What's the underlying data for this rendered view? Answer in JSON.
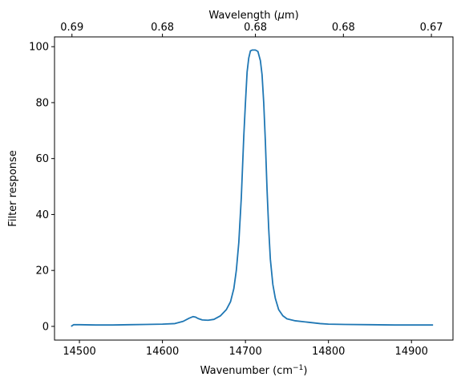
{
  "chart_data": {
    "type": "line",
    "xlabel": "Wavenumber (cm",
    "xlabel_sup": "−1",
    "xlabel_close": ")",
    "ylabel": "Filter response",
    "top_xlabel": "Wavelength (",
    "top_xlabel_mu": "μ",
    "top_xlabel_unit": "m)",
    "xlim": [
      14470,
      14950
    ],
    "ylim": [
      -4.9,
      103.5
    ],
    "xticks": [
      14500,
      14600,
      14700,
      14800,
      14900
    ],
    "xtick_labels": [
      "14500",
      "14600",
      "14700",
      "14800",
      "14900"
    ],
    "yticks": [
      0,
      20,
      40,
      60,
      80,
      100
    ],
    "ytick_labels": [
      "0",
      "20",
      "40",
      "60",
      "80",
      "100"
    ],
    "top_xticks_at": [
      14491,
      14600,
      14712,
      14818,
      14924
    ],
    "top_xtick_labels": [
      "0.69",
      "0.68",
      "0.68",
      "0.68",
      "0.67"
    ],
    "grid": false,
    "line_color": "#1f77b4",
    "series": [
      {
        "x": [
          14490,
          14493,
          14500,
          14520,
          14540,
          14560,
          14580,
          14600,
          14615,
          14625,
          14632,
          14637,
          14640,
          14643,
          14648,
          14655,
          14662,
          14670,
          14677,
          14682,
          14686,
          14689,
          14692,
          14695,
          14698,
          14700,
          14702,
          14704,
          14706,
          14708,
          14710,
          14712,
          14715,
          14718,
          14720,
          14722,
          14724,
          14726,
          14728,
          14730,
          14733,
          14736,
          14740,
          14745,
          14750,
          14760,
          14775,
          14790,
          14800,
          14820,
          14850,
          14880,
          14900,
          14926
        ],
        "y": [
          0.0,
          0.6,
          0.6,
          0.5,
          0.5,
          0.6,
          0.7,
          0.8,
          1.0,
          1.8,
          2.9,
          3.5,
          3.3,
          2.8,
          2.3,
          2.2,
          2.5,
          3.8,
          6.0,
          8.8,
          13.5,
          20.0,
          30.0,
          46.0,
          68.0,
          80.0,
          91.0,
          96.0,
          98.5,
          98.8,
          98.8,
          98.8,
          98.3,
          95.0,
          90.0,
          80.0,
          66.0,
          49.0,
          35.0,
          24.0,
          15.0,
          10.0,
          6.0,
          3.8,
          2.7,
          2.0,
          1.5,
          1.0,
          0.8,
          0.7,
          0.6,
          0.5,
          0.5,
          0.5
        ]
      }
    ]
  }
}
